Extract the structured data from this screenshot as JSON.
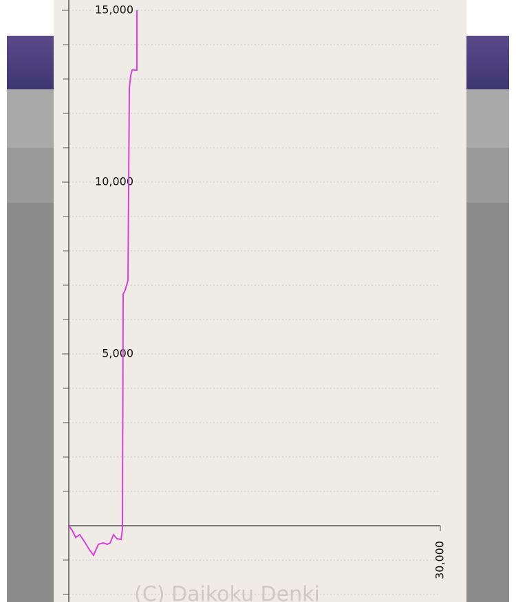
{
  "chart_data": {
    "type": "line",
    "x": [
      0,
      278,
      556,
      889,
      1222,
      1667,
      2000,
      2389,
      2778,
      3111,
      3333,
      3611,
      3889,
      4222,
      4333,
      4389,
      4556,
      4778,
      4889,
      5000,
      5111,
      5500,
      5500
    ],
    "series": [
      {
        "color": "#e03ce0",
        "values": [
          0,
          -140,
          -340,
          -260,
          -440,
          -700,
          -860,
          -540,
          -500,
          -540,
          -500,
          -260,
          -380,
          -400,
          -100,
          6740,
          6860,
          7140,
          12740,
          13100,
          13260,
          13260,
          15000
        ]
      }
    ],
    "xlim": [
      0,
      30000
    ],
    "xticks": [
      {
        "value": 30000,
        "label": "30,000"
      }
    ],
    "ylim": [
      -2000,
      15000
    ],
    "yticks": [
      {
        "value": 5000,
        "label": "5,000"
      },
      {
        "value": 10000,
        "label": "10,000"
      },
      {
        "value": 15000,
        "label": "15,000"
      }
    ],
    "yminorticks": [
      -2000,
      -1000,
      1000,
      2000,
      3000,
      4000,
      5000,
      6000,
      7000,
      8000,
      9000,
      10000,
      11000,
      12000,
      13000,
      14000,
      15000
    ],
    "grid": true
  },
  "watermark": "(C) Daikoku Denki"
}
